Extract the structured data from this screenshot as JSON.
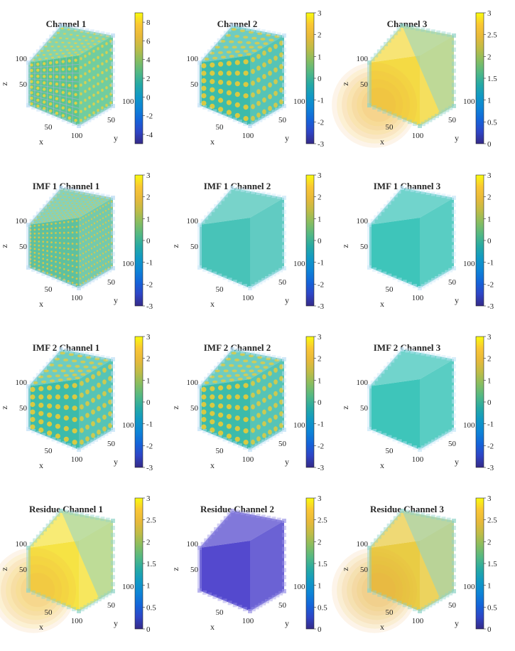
{
  "figure": {
    "description_free": true
  },
  "chart_data": [
    {
      "type": "volume",
      "id": "ch1",
      "title": "Channel 1",
      "xlabel": "x",
      "ylabel": "y",
      "zlabel": "z",
      "x_ticks": [
        "50",
        "100"
      ],
      "y_ticks": [
        "50",
        "100"
      ],
      "z_ticks": [
        "50",
        "100"
      ],
      "colorbar": {
        "range": [
          -5,
          9
        ],
        "ticks": [
          "8",
          "6",
          "4",
          "2",
          "0",
          "-2",
          "-4"
        ],
        "tick_values": [
          8,
          6,
          4,
          2,
          0,
          -2,
          -4
        ]
      },
      "pattern": "grid",
      "colors": {
        "base": "#52c28a",
        "accent": "#f3d13a",
        "edge": "#b9d9f5"
      }
    },
    {
      "type": "volume",
      "id": "ch2",
      "title": "Channel 2",
      "xlabel": "x",
      "ylabel": "y",
      "zlabel": "",
      "x_ticks": [
        "50",
        "100"
      ],
      "y_ticks": [
        "50",
        "100"
      ],
      "z_ticks": [
        "50",
        "100"
      ],
      "colorbar": {
        "range": [
          -3,
          3
        ],
        "ticks": [
          "3",
          "2",
          "1",
          "0",
          "-1",
          "-2",
          "-3"
        ],
        "tick_values": [
          3,
          2,
          1,
          0,
          -1,
          -2,
          -3
        ]
      },
      "pattern": "blobs",
      "colors": {
        "base": "#31b7a6",
        "accent": "#f3cc2f",
        "edge": "#bfe0f7"
      }
    },
    {
      "type": "volume",
      "id": "ch3",
      "title": "Channel 3",
      "xlabel": "x",
      "ylabel": "y",
      "zlabel": "z",
      "x_ticks": [
        "50",
        "100"
      ],
      "y_ticks": [
        "50",
        "100"
      ],
      "z_ticks": [
        "50",
        "100"
      ],
      "colorbar": {
        "range": [
          0,
          3
        ],
        "ticks": [
          "3",
          "2.5",
          "2",
          "1.5",
          "1",
          "0.5",
          "0"
        ],
        "tick_values": [
          3,
          2.5,
          2,
          1.5,
          1,
          0.5,
          0
        ]
      },
      "pattern": "gradient",
      "colors": {
        "base": "#f3d83a",
        "accent": "#f2a84a",
        "edge": "#8fd3c7"
      }
    },
    {
      "type": "volume",
      "id": "imf1c1",
      "title": "IMF 1 Channel 1",
      "xlabel": "x",
      "ylabel": "y",
      "zlabel": "z",
      "x_ticks": [
        "50",
        "100"
      ],
      "y_ticks": [
        "50",
        "100"
      ],
      "z_ticks": [
        "50",
        "100"
      ],
      "colorbar": {
        "range": [
          -3,
          3
        ],
        "ticks": [
          "3",
          "2",
          "1",
          "0",
          "-1",
          "-2",
          "-3"
        ],
        "tick_values": [
          3,
          2,
          1,
          0,
          -1,
          -2,
          -3
        ]
      },
      "pattern": "fine",
      "colors": {
        "base": "#55bd9a",
        "accent": "#e8c83a",
        "edge": "#b9d9f5"
      }
    },
    {
      "type": "volume",
      "id": "imf1c2",
      "title": "IMF 1 Channel 2",
      "xlabel": "x",
      "ylabel": "y",
      "zlabel": "z",
      "x_ticks": [
        "50",
        "100"
      ],
      "y_ticks": [
        "50",
        "100"
      ],
      "z_ticks": [
        "50",
        "100"
      ],
      "colorbar": {
        "range": [
          -3,
          3
        ],
        "ticks": [
          "3",
          "2",
          "1",
          "0",
          "-1",
          "-2",
          "-3"
        ],
        "tick_values": [
          3,
          2,
          1,
          0,
          -1,
          -2,
          -3
        ]
      },
      "pattern": "flat",
      "colors": {
        "base": "#3ec0b4",
        "accent": "#3ec0b4",
        "edge": "#c8e6f8"
      }
    },
    {
      "type": "volume",
      "id": "imf1c3",
      "title": "IMF 1 Channel 3",
      "xlabel": "x",
      "ylabel": "y",
      "zlabel": "z",
      "x_ticks": [
        "50",
        "100"
      ],
      "y_ticks": [
        "50",
        "100"
      ],
      "z_ticks": [
        "50",
        "100"
      ],
      "colorbar": {
        "range": [
          -3,
          3
        ],
        "ticks": [
          "3",
          "2",
          "1",
          "0",
          "-1",
          "-2",
          "-3"
        ],
        "tick_values": [
          3,
          2,
          1,
          0,
          -1,
          -2,
          -3
        ]
      },
      "pattern": "flat",
      "colors": {
        "base": "#34c2b6",
        "accent": "#34c2b6",
        "edge": "#c8e6f8"
      }
    },
    {
      "type": "volume",
      "id": "imf2c1",
      "title": "IMF 2 Channel 1",
      "xlabel": "x",
      "ylabel": "y",
      "zlabel": "z",
      "x_ticks": [
        "50",
        "100"
      ],
      "y_ticks": [
        "50",
        "100"
      ],
      "z_ticks": [
        "50",
        "100"
      ],
      "colorbar": {
        "range": [
          -3,
          3
        ],
        "ticks": [
          "3",
          "2",
          "1",
          "0",
          "-1",
          "-2",
          "-3"
        ],
        "tick_values": [
          3,
          2,
          1,
          0,
          -1,
          -2,
          -3
        ]
      },
      "pattern": "blobs",
      "colors": {
        "base": "#31b7a6",
        "accent": "#f3cc2f",
        "edge": "#bfe0f7"
      }
    },
    {
      "type": "volume",
      "id": "imf2c2",
      "title": "IMF 2 Channel 2",
      "xlabel": "x",
      "ylabel": "y",
      "zlabel": "z",
      "x_ticks": [
        "50",
        "100"
      ],
      "y_ticks": [
        "50",
        "100"
      ],
      "z_ticks": [
        "50",
        "100"
      ],
      "colorbar": {
        "range": [
          -3,
          3
        ],
        "ticks": [
          "3",
          "2",
          "1",
          "0",
          "-1",
          "-2",
          "-3"
        ],
        "tick_values": [
          3,
          2,
          1,
          0,
          -1,
          -2,
          -3
        ]
      },
      "pattern": "blobs",
      "colors": {
        "base": "#31b7a6",
        "accent": "#f3cc2f",
        "edge": "#bfe0f7"
      }
    },
    {
      "type": "volume",
      "id": "imf2c3",
      "title": "IMF 2 Channel 3",
      "xlabel": "x",
      "ylabel": "y",
      "zlabel": "z",
      "x_ticks": [
        "50",
        "100"
      ],
      "y_ticks": [
        "50",
        "100"
      ],
      "z_ticks": [
        "50",
        "100"
      ],
      "colorbar": {
        "range": [
          -3,
          3
        ],
        "ticks": [
          "3",
          "2",
          "1",
          "0",
          "-1",
          "-2",
          "-3"
        ],
        "tick_values": [
          3,
          2,
          1,
          0,
          -1,
          -2,
          -3
        ]
      },
      "pattern": "flat",
      "colors": {
        "base": "#34c2b6",
        "accent": "#34c2b6",
        "edge": "#c8e6f8"
      }
    },
    {
      "type": "volume",
      "id": "resc1",
      "title": "Residue Channel 1",
      "xlabel": "x",
      "ylabel": "y",
      "zlabel": "z",
      "x_ticks": [
        "50",
        "100"
      ],
      "y_ticks": [
        "50",
        "100"
      ],
      "z_ticks": [
        "50",
        "100"
      ],
      "colorbar": {
        "range": [
          0,
          3
        ],
        "ticks": [
          "3",
          "2.5",
          "2",
          "1.5",
          "1",
          "0.5",
          "0"
        ],
        "tick_values": [
          3,
          2.5,
          2,
          1.5,
          1,
          0.5,
          0
        ]
      },
      "pattern": "gradient",
      "colors": {
        "base": "#f5e23a",
        "accent": "#f2a84a",
        "edge": "#8fd3c7"
      }
    },
    {
      "type": "volume",
      "id": "resc2",
      "title": "Residue Channel 2",
      "xlabel": "x",
      "ylabel": "y",
      "zlabel": "z",
      "x_ticks": [
        "50",
        "100"
      ],
      "y_ticks": [
        "50",
        "100"
      ],
      "z_ticks": [
        "50",
        "100"
      ],
      "colorbar": {
        "range": [
          0,
          3
        ],
        "ticks": [
          "3",
          "2.5",
          "2",
          "1.5",
          "1",
          "0.5",
          "0"
        ],
        "tick_values": [
          3,
          2.5,
          2,
          1.5,
          1,
          0.5,
          0
        ]
      },
      "pattern": "flat",
      "colors": {
        "base": "#4b3fcb",
        "accent": "#4b3fcb",
        "edge": "#9c94e6"
      }
    },
    {
      "type": "volume",
      "id": "resc3",
      "title": "Residue Channel 3",
      "xlabel": "x",
      "ylabel": "y",
      "zlabel": "z",
      "x_ticks": [
        "50",
        "100"
      ],
      "y_ticks": [
        "50",
        "100"
      ],
      "z_ticks": [
        "50",
        "100"
      ],
      "colorbar": {
        "range": [
          0,
          3
        ],
        "ticks": [
          "3",
          "2.5",
          "2",
          "1.5",
          "1",
          "0.5",
          "0"
        ],
        "tick_values": [
          3,
          2.5,
          2,
          1.5,
          1,
          0.5,
          0
        ]
      },
      "pattern": "gradient",
      "colors": {
        "base": "#e8c93a",
        "accent": "#f2a84a",
        "edge": "#8fd3c7"
      }
    }
  ]
}
